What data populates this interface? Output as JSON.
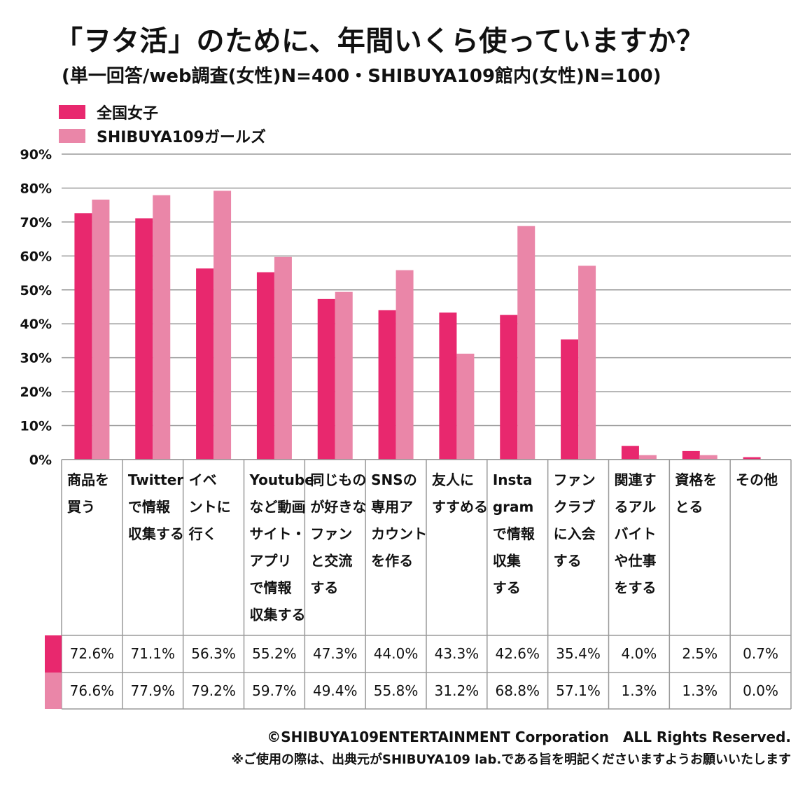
{
  "chart_data": {
    "type": "bar",
    "title": "「ヲタ活」のために、年間いくら使っていますか？",
    "subtitle": "(単一回答/web調査(女性)N=400・SHIBUYA109館内(女性)N=100)",
    "categories": [
      "商品を買う",
      "Twitterで情報収集する",
      "イベントに行く",
      "Youtubeなど動画サイト・アプリで情報収集する",
      "同じものが好きなファンと交流する",
      "SNSの専用アカウントを作る",
      "友人にすすめる",
      "Instagramで情報収集する",
      "ファンクラブに入会する",
      "関連するアルバイトや仕事をする",
      "資格をとる",
      "その他"
    ],
    "category_lines": [
      [
        "商品を",
        "買う"
      ],
      [
        "Twitter",
        "で情報",
        "収集する"
      ],
      [
        "イベ",
        "ントに",
        "行く"
      ],
      [
        "Youtube",
        "など動画",
        "サイト・",
        "アプリ",
        "で情報",
        "収集する"
      ],
      [
        "同じもの",
        "が好きな",
        "ファン",
        "と交流",
        "する"
      ],
      [
        "SNSの",
        "専用ア",
        "カウント",
        "を作る"
      ],
      [
        "友人に",
        "すすめる"
      ],
      [
        "Insta",
        "gram",
        "で情報",
        "収集",
        "する"
      ],
      [
        "ファン",
        "クラブ",
        "に入会",
        "する"
      ],
      [
        "関連す",
        "るアル",
        "バイト",
        "や仕事",
        "をする"
      ],
      [
        "資格を",
        "とる"
      ],
      [
        "その他"
      ]
    ],
    "series": [
      {
        "name": "全国女子",
        "color": "#e8286e",
        "values": [
          72.6,
          71.1,
          56.3,
          55.2,
          47.3,
          44.0,
          43.3,
          42.6,
          35.4,
          4.0,
          2.5,
          0.7
        ],
        "labels": [
          "72.6%",
          "71.1%",
          "56.3%",
          "55.2%",
          "47.3%",
          "44.0%",
          "43.3%",
          "42.6%",
          "35.4%",
          "4.0%",
          "2.5%",
          "0.7%"
        ]
      },
      {
        "name": "SHIBUYA109ガールズ",
        "color": "#ea86a8",
        "values": [
          76.6,
          77.9,
          79.2,
          59.7,
          49.4,
          55.8,
          31.2,
          68.8,
          57.1,
          1.3,
          1.3,
          0.0
        ],
        "labels": [
          "76.6%",
          "77.9%",
          "79.2%",
          "59.7%",
          "49.4%",
          "55.8%",
          "31.2%",
          "68.8%",
          "57.1%",
          "1.3%",
          "1.3%",
          "0.0%"
        ]
      }
    ],
    "ylim": [
      0,
      90
    ],
    "yticks": [
      "0%",
      "10%",
      "20%",
      "30%",
      "40%",
      "50%",
      "60%",
      "70%",
      "80%",
      "90%"
    ],
    "grid": true,
    "legend": "top-left"
  },
  "footer": {
    "copyright": "©SHIBUYA109ENTERTAINMENT Corporation　ALL Rights Reserved.",
    "note": "※ご使用の際は、出典元がSHIBUYA109 lab.である旨を明記くださいますようお願いいたします"
  }
}
